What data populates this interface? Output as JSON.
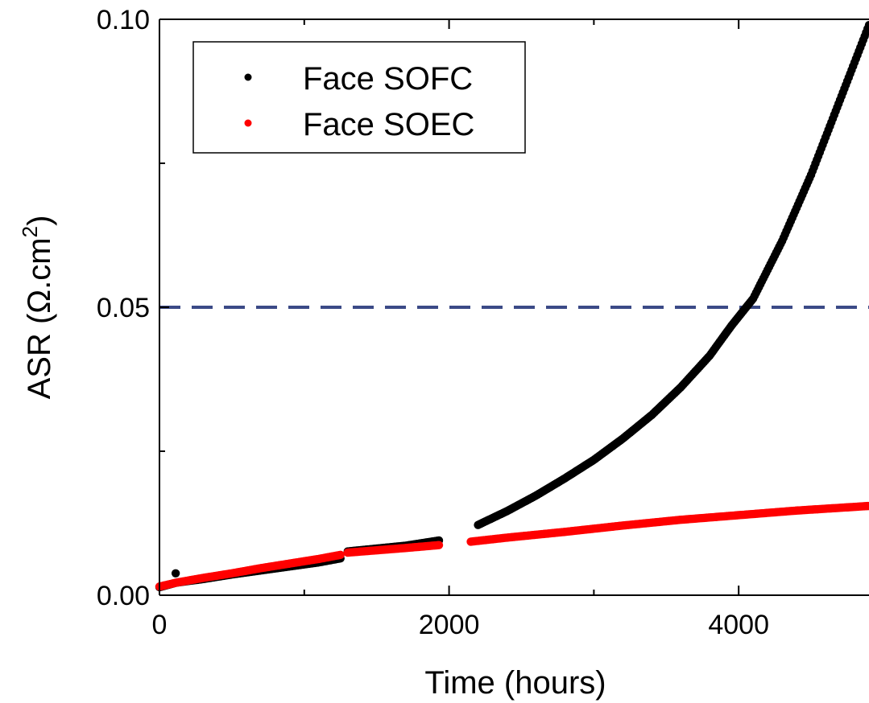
{
  "chart_data": {
    "type": "scatter",
    "title": "",
    "xlabel": "Time (hours)",
    "ylabel_text": "ASR (Ω.cm",
    "ylabel_sup": "2",
    "ylabel_close": ")",
    "xlim": [
      0,
      4900
    ],
    "ylim": [
      0,
      0.1
    ],
    "x_ticks": [
      0,
      2000,
      4000
    ],
    "x_tick_labels": [
      "0",
      "2000",
      "4000"
    ],
    "x_minor_ticks": [
      1000,
      3000
    ],
    "y_ticks": [
      0,
      0.05,
      0.1
    ],
    "y_tick_labels": [
      "0.00",
      "0.05",
      "0.10"
    ],
    "y_minor_ticks": [
      0.025,
      0.075
    ],
    "grid": false,
    "legend_position": "top-left",
    "reference_line": {
      "y": 0.05,
      "style": "dashed",
      "color": "#3b4a87"
    },
    "series": [
      {
        "name": "Face SOFC",
        "color": "#000000",
        "segments": [
          {
            "x": [
              0,
              120,
              300,
              500,
              700,
              900,
              1100,
              1250
            ],
            "y": [
              0.0014,
              0.0022,
              0.0028,
              0.0036,
              0.0043,
              0.005,
              0.0057,
              0.0064
            ]
          },
          {
            "x": [
              1300,
              1500,
              1700,
              1930
            ],
            "y": [
              0.0076,
              0.0081,
              0.0086,
              0.0095
            ]
          },
          {
            "x": [
              2200,
              2400,
              2600,
              2800,
              3000,
              3200,
              3400,
              3600,
              3800,
              3950,
              4100,
              4300,
              4500,
              4700,
              4900
            ],
            "y": [
              0.0122,
              0.0146,
              0.0173,
              0.0203,
              0.0235,
              0.0272,
              0.0313,
              0.0361,
              0.0416,
              0.0468,
              0.0515,
              0.0615,
              0.073,
              0.086,
              0.099
            ]
          }
        ],
        "outliers": {
          "x": [
            112
          ],
          "y": [
            0.0038
          ]
        }
      },
      {
        "name": "Face SOEC",
        "color": "#ff0000",
        "segments": [
          {
            "x": [
              0,
              120,
              300,
              500,
              700,
              900,
              1100,
              1250
            ],
            "y": [
              0.0015,
              0.0022,
              0.003,
              0.0038,
              0.0047,
              0.0055,
              0.0063,
              0.007
            ]
          },
          {
            "x": [
              1300,
              1500,
              1700,
              1930
            ],
            "y": [
              0.0074,
              0.0078,
              0.0082,
              0.0087
            ]
          },
          {
            "x": [
              2150,
              2400,
              2800,
              3200,
              3600,
              4000,
              4400,
              4900
            ],
            "y": [
              0.0093,
              0.01,
              0.011,
              0.0121,
              0.0131,
              0.0139,
              0.0147,
              0.0155
            ]
          }
        ],
        "outliers": {
          "x": [],
          "y": []
        }
      }
    ]
  }
}
